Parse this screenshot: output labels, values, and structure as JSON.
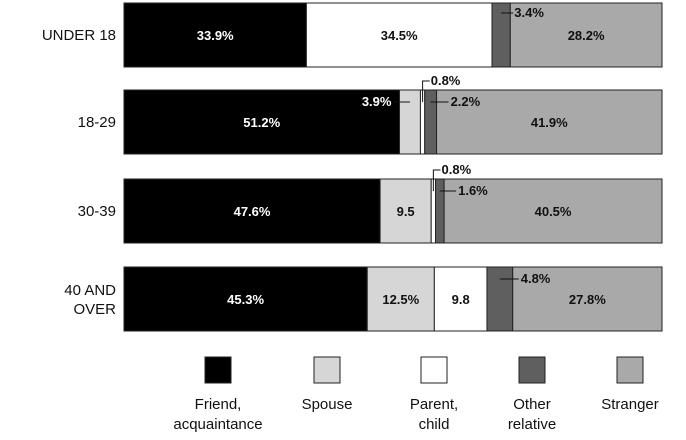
{
  "chart_data": {
    "type": "bar",
    "orientation": "horizontal",
    "stacked": true,
    "normalized_percent": true,
    "categories": [
      "UNDER 18",
      "18-29",
      "30-39",
      "40 AND OVER"
    ],
    "series": [
      {
        "name": "Friend, acquaintance",
        "color": "#000000",
        "values": [
          33.9,
          51.2,
          47.6,
          45.3
        ],
        "labels": [
          "33.9%",
          "51.2%",
          "47.6%",
          "45.3%"
        ]
      },
      {
        "name": "Spouse",
        "color": "#d6d6d6",
        "values": [
          0,
          3.9,
          9.5,
          12.5
        ],
        "labels": [
          "",
          "3.9%",
          "9.5",
          "12.5%"
        ]
      },
      {
        "name": "Parent, child",
        "color": "#ffffff",
        "values": [
          34.5,
          0.8,
          0.8,
          9.8
        ],
        "labels": [
          "34.5%",
          "0.8%",
          "0.8%",
          "9.8"
        ]
      },
      {
        "name": "Other relative",
        "color": "#5f5f5f",
        "values": [
          3.4,
          2.2,
          1.6,
          4.8
        ],
        "labels": [
          "3.4%",
          "2.2%",
          "1.6%",
          "4.8%"
        ]
      },
      {
        "name": "Stranger",
        "color": "#a9a9a9",
        "values": [
          28.2,
          41.9,
          40.5,
          27.8
        ],
        "labels": [
          "28.2%",
          "41.9%",
          "40.5%",
          "27.8%"
        ]
      }
    ],
    "grid": false,
    "legend_position": "bottom"
  }
}
